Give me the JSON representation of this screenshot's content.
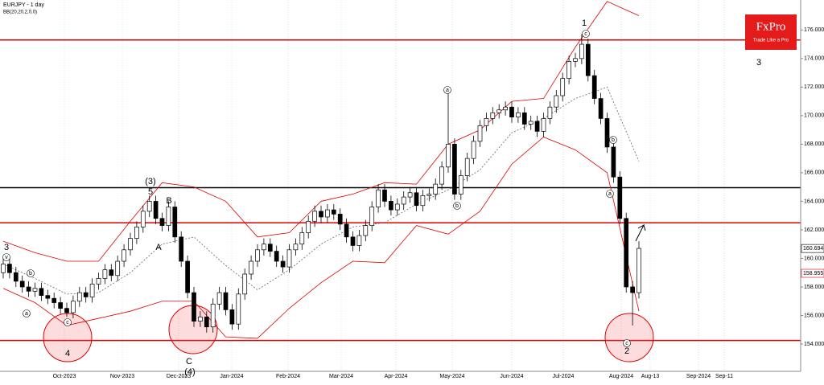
{
  "chart_data": {
    "type": "candlestick",
    "title": "EURJPY - 1 day",
    "subtitle": "BB(20,20,2,0,0)",
    "logo": {
      "brand": "FxPro",
      "tagline": "Trade Like a Pro"
    },
    "ylim": [
      152.2,
      178.1
    ],
    "yticks": [
      {
        "value": 154,
        "label": "154.000"
      },
      {
        "value": 156,
        "label": "156.000"
      },
      {
        "value": 158,
        "label": "158.000"
      },
      {
        "value": 160,
        "label": "160.000"
      },
      {
        "value": 162,
        "label": "162.000"
      },
      {
        "value": 164,
        "label": "164.000"
      },
      {
        "value": 166,
        "label": "166.000"
      },
      {
        "value": 168,
        "label": "168.000"
      },
      {
        "value": 170,
        "label": "170.000"
      },
      {
        "value": 172,
        "label": "172.000"
      },
      {
        "value": 174,
        "label": "174.000"
      },
      {
        "value": 176,
        "label": "176.000"
      }
    ],
    "xticks": [
      "Oct-2023",
      "Nov-2023",
      "Dec-2023",
      "Jan-2024",
      "Feb-2024",
      "Mar-2024",
      "Apr-2024",
      "May-2024",
      "Jun-2024",
      "Jul-2024",
      "Aug-2024",
      "Aug-13",
      "Sep-2024",
      "Sep-11"
    ],
    "price_labels": [
      {
        "value": 160.694,
        "label": "160.694"
      },
      {
        "value": 158.955,
        "label": "158.955"
      }
    ],
    "levels": [
      {
        "value": 175.3,
        "color": "#e00000"
      },
      {
        "value": 164.95,
        "color": "#000000"
      },
      {
        "value": 162.5,
        "color": "#e00000"
      },
      {
        "value": 154.25,
        "color": "#e00000"
      }
    ],
    "up_color": "#ffffff",
    "down_color": "#000000",
    "band_color": "#e00000",
    "open": [
      159.0,
      159.6,
      159.0,
      158.4,
      158.0,
      157.7,
      157.9,
      157.4,
      157.2,
      156.9,
      156.5,
      156.2,
      157.0,
      157.6,
      157.3,
      158.2,
      158.6,
      159.2,
      158.8,
      159.8,
      160.6,
      161.4,
      162.2,
      163.3,
      164.0,
      162.8,
      162.3,
      163.6,
      161.5,
      159.8,
      157.6,
      155.6,
      155.9,
      155.2,
      156.8,
      157.6,
      156.4,
      155.4,
      157.5,
      158.9,
      159.8,
      160.6,
      161.0,
      160.5,
      159.8,
      159.4,
      160.6,
      161.0,
      161.8,
      162.6,
      163.3,
      162.9,
      163.4,
      163.1,
      162.4,
      161.5,
      160.9,
      161.6,
      162.3,
      163.6,
      164.8,
      164.0,
      163.4,
      163.8,
      164.3,
      164.6,
      163.7,
      164.4,
      164.5,
      165.2,
      166.4,
      168.0,
      164.5,
      165.8,
      167.0,
      168.2,
      169.3,
      169.8,
      170.2,
      170.4,
      170.6,
      169.9,
      170.2,
      169.4,
      169.6,
      168.9,
      169.8,
      170.6,
      171.4,
      172.6,
      173.8,
      174.0,
      175.0,
      172.8,
      171.2,
      169.8,
      167.8,
      165.7,
      162.8,
      158.0,
      157.6
    ],
    "high": [
      160.0,
      160.0,
      159.4,
      158.8,
      158.4,
      158.3,
      158.3,
      157.8,
      157.6,
      157.3,
      156.9,
      157.4,
      158.0,
      158.0,
      158.6,
      159.0,
      159.6,
      159.6,
      160.2,
      161.0,
      161.8,
      162.6,
      163.7,
      164.4,
      164.4,
      163.2,
      164.0,
      164.0,
      161.9,
      160.2,
      158.0,
      156.3,
      156.3,
      157.2,
      158.0,
      158.0,
      156.8,
      157.9,
      159.3,
      160.2,
      161.0,
      161.4,
      161.4,
      160.9,
      160.2,
      161.0,
      161.4,
      162.2,
      163.0,
      163.7,
      163.7,
      163.8,
      163.8,
      163.5,
      162.8,
      161.9,
      162.0,
      162.7,
      164.0,
      165.2,
      165.2,
      164.4,
      164.2,
      164.7,
      165.0,
      165.0,
      164.8,
      164.9,
      165.6,
      166.8,
      171.8,
      168.4,
      166.2,
      167.4,
      168.6,
      169.7,
      170.2,
      170.6,
      170.8,
      171.0,
      171.0,
      170.6,
      170.6,
      170.0,
      170.0,
      170.2,
      171.0,
      171.8,
      173.0,
      174.2,
      174.4,
      175.7,
      175.4,
      173.2,
      171.6,
      170.2,
      168.2,
      166.1,
      163.2,
      158.4,
      161.2
    ],
    "low": [
      158.6,
      158.6,
      158.0,
      157.6,
      157.3,
      157.3,
      157.0,
      156.8,
      156.5,
      156.1,
      155.9,
      155.8,
      156.6,
      156.9,
      156.9,
      157.8,
      158.2,
      158.4,
      158.4,
      159.4,
      160.2,
      161.0,
      161.8,
      162.9,
      162.4,
      161.9,
      161.9,
      161.1,
      159.4,
      157.2,
      155.2,
      155.2,
      154.8,
      154.8,
      156.4,
      156.0,
      155.0,
      155.0,
      157.1,
      158.5,
      159.4,
      160.2,
      160.1,
      159.4,
      159.0,
      159.0,
      160.2,
      160.6,
      161.4,
      162.2,
      162.5,
      162.5,
      162.7,
      162.0,
      161.1,
      160.5,
      160.5,
      161.2,
      161.9,
      163.2,
      163.6,
      163.0,
      163.0,
      163.4,
      163.9,
      163.3,
      163.3,
      164.0,
      164.1,
      164.8,
      166.0,
      164.1,
      164.1,
      165.4,
      166.6,
      167.8,
      168.9,
      169.4,
      169.8,
      170.0,
      169.5,
      169.5,
      169.0,
      169.0,
      168.5,
      168.5,
      169.4,
      170.2,
      171.0,
      172.2,
      173.4,
      173.6,
      172.4,
      170.8,
      169.4,
      167.4,
      165.3,
      162.4,
      157.6,
      155.3,
      157.2
    ],
    "close": [
      159.6,
      159.0,
      158.4,
      158.0,
      157.7,
      157.9,
      157.4,
      157.2,
      156.9,
      156.5,
      156.2,
      157.0,
      157.6,
      157.3,
      158.2,
      158.6,
      159.2,
      158.8,
      159.8,
      160.6,
      161.4,
      162.2,
      163.3,
      164.0,
      162.8,
      162.3,
      163.6,
      161.5,
      159.8,
      157.6,
      155.6,
      155.9,
      155.2,
      156.8,
      157.6,
      156.4,
      155.4,
      157.5,
      158.9,
      159.8,
      160.6,
      161.0,
      160.5,
      159.8,
      159.4,
      160.6,
      161.0,
      161.8,
      162.6,
      163.3,
      162.9,
      163.4,
      163.1,
      162.4,
      161.5,
      160.9,
      161.6,
      162.3,
      163.6,
      164.8,
      164.0,
      163.4,
      163.8,
      164.3,
      164.6,
      163.7,
      164.4,
      164.5,
      165.2,
      166.4,
      168.0,
      164.5,
      165.8,
      167.0,
      168.2,
      169.3,
      169.8,
      170.2,
      170.4,
      170.6,
      169.9,
      170.2,
      169.4,
      169.6,
      168.9,
      169.8,
      170.6,
      171.4,
      172.6,
      173.8,
      174.0,
      175.0,
      172.8,
      171.2,
      169.8,
      167.8,
      165.7,
      162.8,
      158.0,
      157.6,
      160.7
    ],
    "bb": {
      "upper": [
        161.2,
        160.4,
        159.8,
        159.8,
        162.6,
        165.3,
        165.0,
        164.0,
        161.5,
        161.8,
        164.0,
        164.5,
        165.3,
        165.2,
        168.0,
        169.0,
        171.0,
        171.2,
        174.8,
        178.0,
        177.0
      ],
      "middle": [
        159.6,
        158.6,
        157.5,
        157.6,
        159.0,
        161.0,
        161.5,
        159.5,
        157.8,
        159.2,
        161.0,
        162.2,
        162.5,
        163.8,
        164.8,
        166.2,
        168.8,
        169.8,
        171.2,
        172.0,
        166.8
      ],
      "lower": [
        157.9,
        156.9,
        155.3,
        155.8,
        156.3,
        157.0,
        157.0,
        154.5,
        154.4,
        156.5,
        158.3,
        159.8,
        159.7,
        162.3,
        161.7,
        163.3,
        166.6,
        168.5,
        167.6,
        166.0,
        156.3
      ]
    },
    "annotations": [
      "3",
      "v",
      "b",
      "a",
      "c",
      "4",
      "(3)",
      "5",
      "B",
      "A",
      "C",
      "(4)",
      "1",
      "c",
      "a",
      "b",
      "b",
      "a",
      "c",
      "2",
      "3"
    ]
  }
}
